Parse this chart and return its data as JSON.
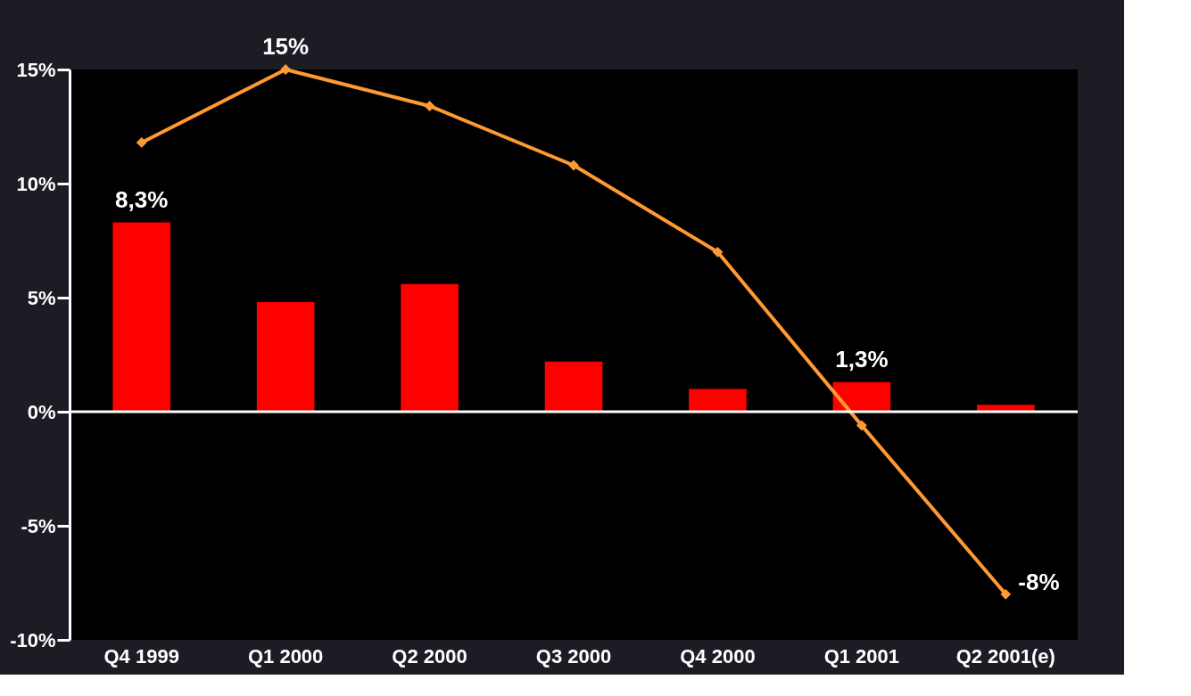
{
  "chart_data": {
    "type": "bar",
    "categories": [
      "Q4 1999",
      "Q1 2000",
      "Q2 2000",
      "Q3 2000",
      "Q4 2000",
      "Q1 2001",
      "Q2 2001(e)"
    ],
    "series": [
      {
        "color": "#ff0000",
        "values": [
          8.3,
          4.8,
          5.6,
          2.2,
          1.0,
          1.3,
          0.3
        ],
        "value_labels": [
          "8,3%",
          null,
          null,
          null,
          null,
          "1,3%",
          null
        ]
      },
      {
        "type": "line",
        "color": "#ff9933",
        "values": [
          11.8,
          15,
          13.4,
          10.8,
          7.0,
          -0.6,
          -8
        ],
        "value_labels": [
          null,
          "15%",
          null,
          null,
          null,
          null,
          "-8%"
        ]
      }
    ],
    "ylim": [
      -10,
      15
    ],
    "yticks": [
      {
        "value": -10,
        "label": "-10%"
      },
      {
        "value": -5,
        "label": "-5%"
      },
      {
        "value": 0,
        "label": "0%"
      },
      {
        "value": 5,
        "label": "5%"
      },
      {
        "value": 10,
        "label": "10%"
      },
      {
        "value": 15,
        "label": "15%"
      }
    ],
    "ref_lines": [
      {
        "axis": "y",
        "value": 0,
        "color": "#ffffff"
      }
    ],
    "marker": "diamond",
    "grid": false
  }
}
